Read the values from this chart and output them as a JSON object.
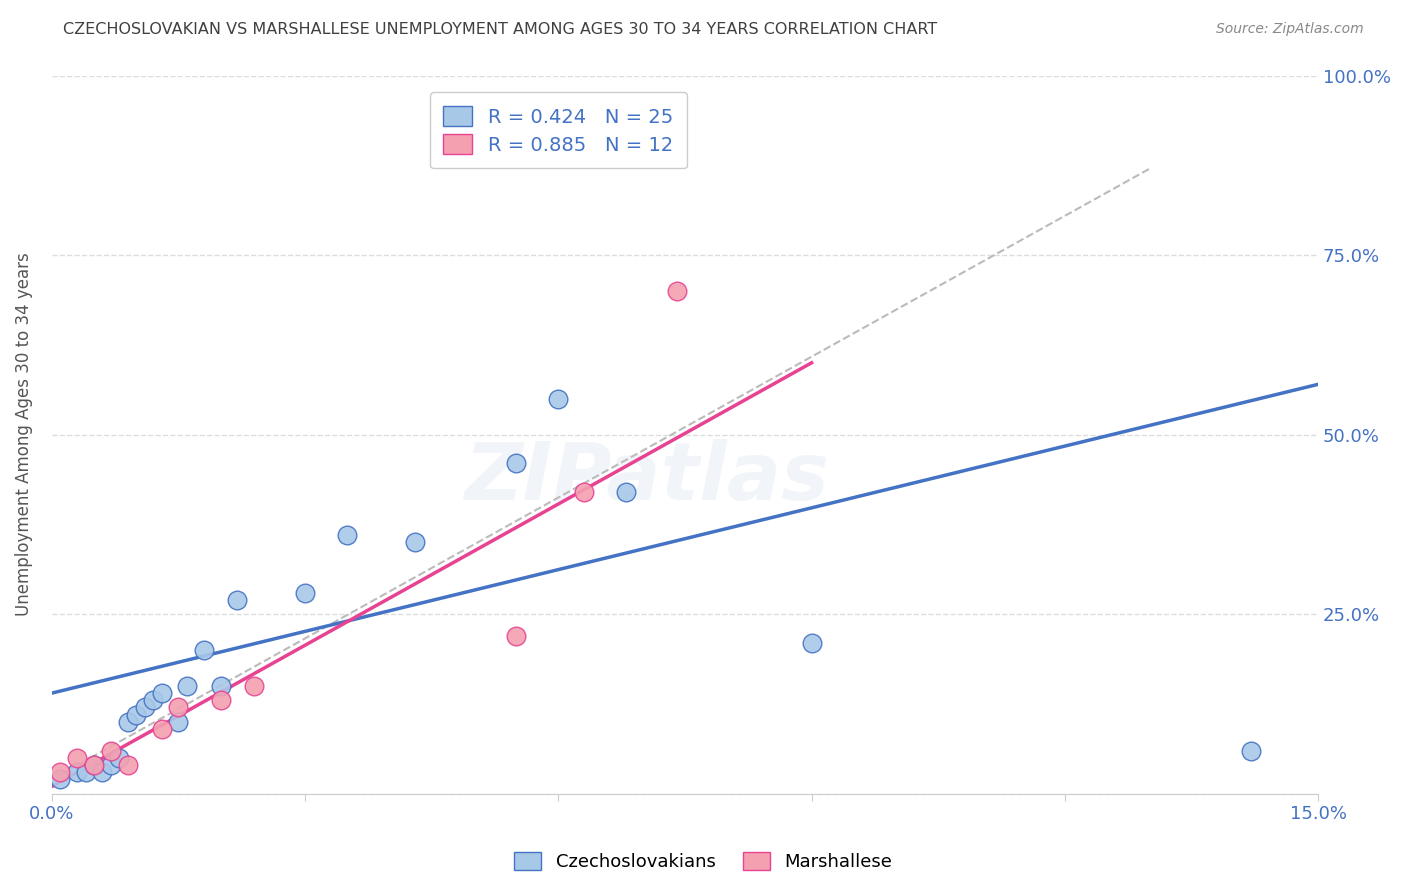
{
  "title": "CZECHOSLOVAKIAN VS MARSHALLESE UNEMPLOYMENT AMONG AGES 30 TO 34 YEARS CORRELATION CHART",
  "source": "Source: ZipAtlas.com",
  "ylabel": "Unemployment Among Ages 30 to 34 years",
  "xlim": [
    0.0,
    0.15
  ],
  "ylim": [
    0.0,
    1.0
  ],
  "xticks": [
    0.0,
    0.03,
    0.06,
    0.09,
    0.12,
    0.15
  ],
  "xtick_labels": [
    "0.0%",
    "",
    "",
    "",
    "",
    "15.0%"
  ],
  "yticks": [
    0.0,
    0.25,
    0.5,
    0.75,
    1.0
  ],
  "ytick_labels": [
    "",
    "25.0%",
    "50.0%",
    "75.0%",
    "100.0%"
  ],
  "czech_R": 0.424,
  "czech_N": 25,
  "marsh_R": 0.885,
  "marsh_N": 12,
  "czech_color": "#A8C8E8",
  "marsh_color": "#F4A0B0",
  "czech_line_color": "#4472C4",
  "marsh_line_color": "#E84393",
  "ref_line_color": "#BBBBBB",
  "axis_label_color": "#4472C4",
  "title_color": "#404040",
  "watermark_text": "ZIPatlas",
  "watermark_color": "#4472C4",
  "background_color": "#FFFFFF",
  "grid_color": "#DDDDDD",
  "czech_x": [
    0.001,
    0.003,
    0.004,
    0.005,
    0.006,
    0.007,
    0.008,
    0.009,
    0.01,
    0.011,
    0.012,
    0.013,
    0.015,
    0.016,
    0.018,
    0.02,
    0.022,
    0.03,
    0.035,
    0.043,
    0.055,
    0.06,
    0.068,
    0.09,
    0.142
  ],
  "czech_y": [
    0.02,
    0.03,
    0.03,
    0.04,
    0.03,
    0.04,
    0.05,
    0.1,
    0.11,
    0.12,
    0.13,
    0.14,
    0.1,
    0.15,
    0.2,
    0.15,
    0.27,
    0.28,
    0.36,
    0.35,
    0.46,
    0.55,
    0.42,
    0.21,
    0.06
  ],
  "marsh_x": [
    0.001,
    0.003,
    0.005,
    0.007,
    0.009,
    0.013,
    0.015,
    0.02,
    0.024,
    0.055,
    0.063,
    0.074
  ],
  "marsh_y": [
    0.03,
    0.05,
    0.04,
    0.06,
    0.04,
    0.09,
    0.12,
    0.13,
    0.15,
    0.22,
    0.42,
    0.7
  ],
  "czech_line_x": [
    0.0,
    0.15
  ],
  "czech_line_y": [
    0.14,
    0.57
  ],
  "marsh_line_x": [
    0.0,
    0.09
  ],
  "marsh_line_y": [
    0.01,
    0.6
  ],
  "ref_line_x": [
    0.0,
    0.13
  ],
  "ref_line_y": [
    0.02,
    0.87
  ],
  "marker_size": 180
}
